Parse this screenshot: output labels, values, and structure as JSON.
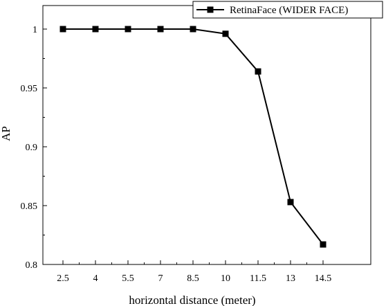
{
  "chart_data": {
    "type": "line",
    "xlabel": "horizontal distance (meter)",
    "ylabel": "AP",
    "x": [
      2.5,
      4,
      5.5,
      7,
      8.5,
      10,
      11.5,
      13,
      14.5
    ],
    "x_tick_labels": [
      "2.5",
      "4",
      "5.5",
      "7",
      "8.5",
      "10",
      "11.5",
      "13",
      "14.5"
    ],
    "y_ticks": [
      0.8,
      0.85,
      0.9,
      0.95,
      1
    ],
    "y_tick_labels": [
      "0.8",
      "0.85",
      "0.9",
      "0.95",
      "1"
    ],
    "ylim": [
      0.8,
      1.02
    ],
    "series": [
      {
        "name": "RetinaFace (WIDER FACE)",
        "values": [
          1.0,
          1.0,
          1.0,
          1.0,
          1.0,
          0.996,
          0.964,
          0.853,
          0.817
        ],
        "color": "#000000",
        "marker": "square"
      }
    ],
    "legend_position": "top-right",
    "grid": false
  }
}
